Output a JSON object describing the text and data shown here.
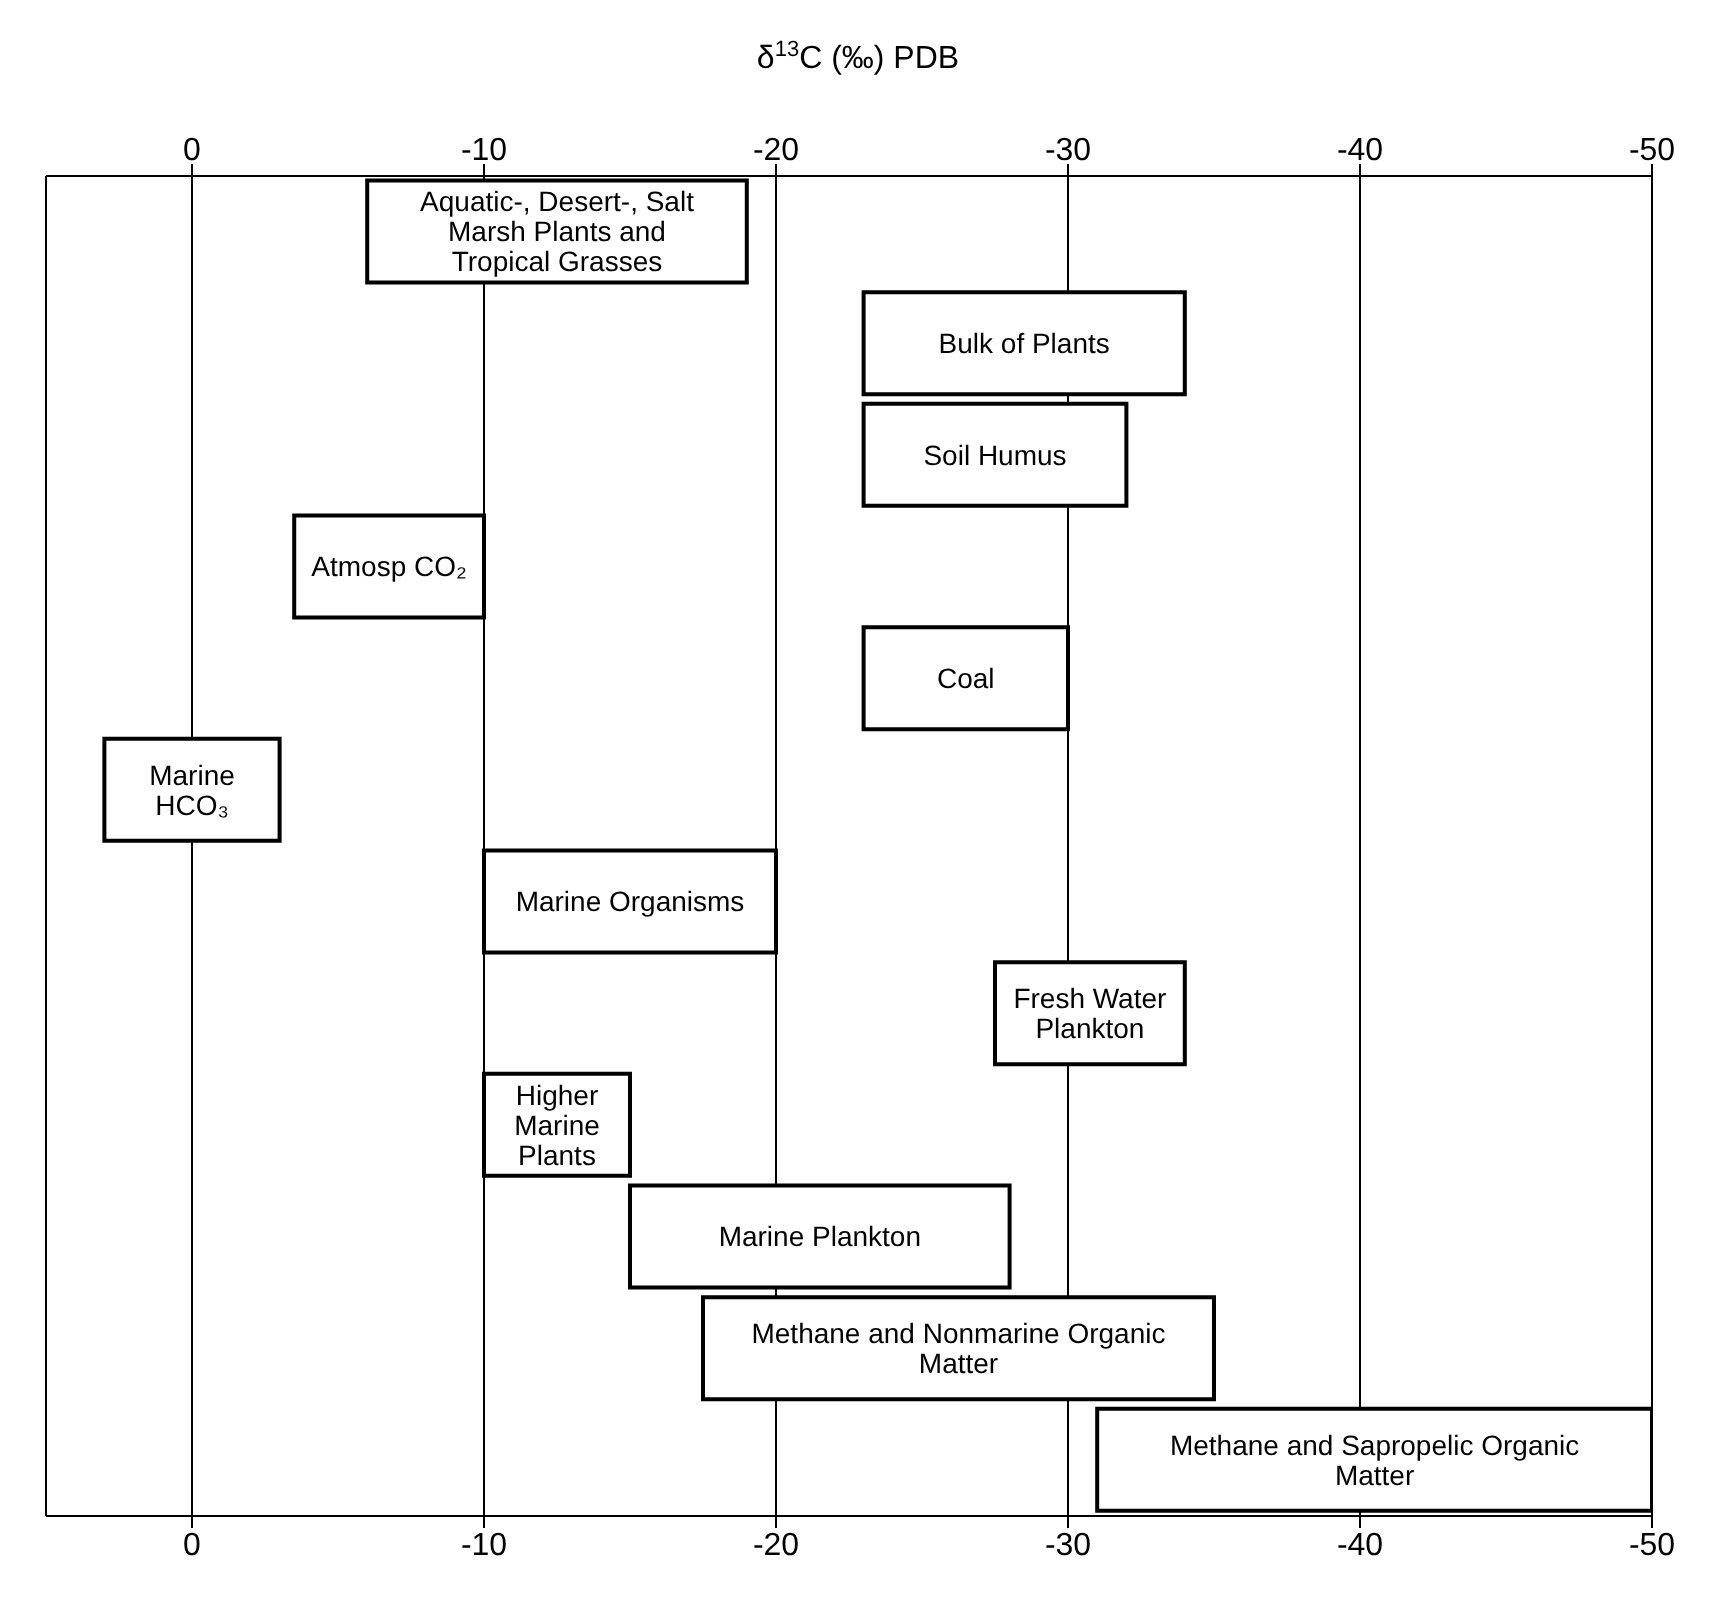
{
  "chart_data": {
    "type": "bar",
    "orientation": "horizontal",
    "title": "δ$^{13}$C (‰) PDB",
    "categories": [
      "Aquatic-, Desert-, Salt Marsh Plants and Tropical Grasses",
      "Bulk of Plants",
      "Soil Humus",
      "Atmosp CO₂",
      "Coal",
      "Marine HCO₃",
      "Marine Organisms",
      "Fresh Water Plankton",
      "Higher Marine Plants",
      "Marine Plankton",
      "Methane and Nonmarine Organic Matter",
      "Methane and Sapropelic Organic Matter"
    ],
    "base": [
      -6,
      -23,
      -23,
      -3.5,
      -23,
      3,
      -10,
      -27.5,
      -10,
      -15,
      -17.5,
      -31
    ],
    "values": [
      -13,
      -11,
      -9,
      -6.5,
      -7,
      -6,
      -10,
      -6.5,
      -5,
      -13,
      -17.5,
      -19
    ],
    "colors": [
      "#ffffff",
      "#ffffff",
      "#ffffff",
      "#ffffff",
      "#ffffff",
      "#ffffff",
      "#ffffff",
      "#ffffff",
      "#ffffff",
      "#ffffff",
      "#ffffff",
      "#ffffff"
    ],
    "xlim": [
      5,
      -50
    ],
    "xticks": [
      0,
      -10,
      -20,
      -30,
      -40,
      -50
    ],
    "x2lim": [
      5,
      -50
    ],
    "x2ticks": [
      0,
      -10,
      -20,
      -30,
      -40,
      -50
    ],
    "grid": "x"
  }
}
